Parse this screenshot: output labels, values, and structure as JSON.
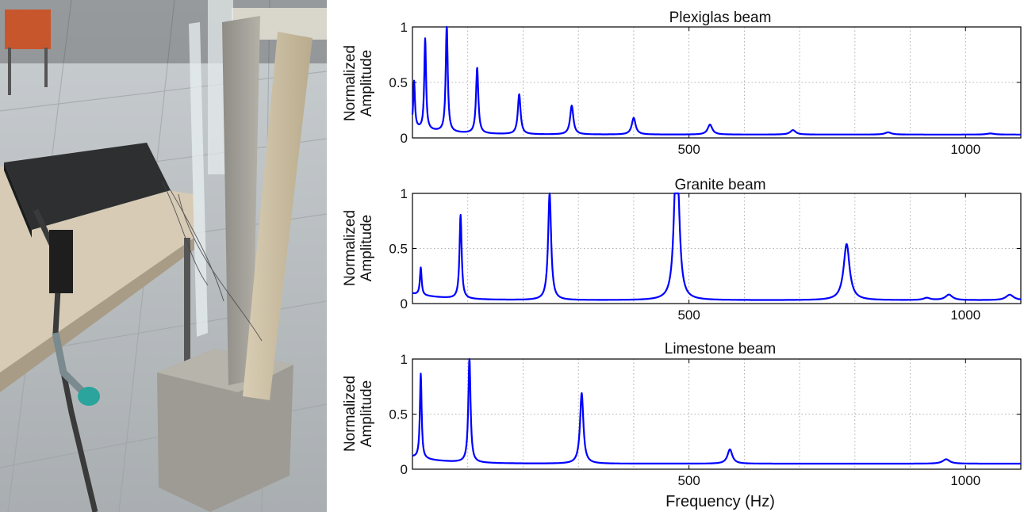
{
  "chart_data": [
    {
      "type": "line",
      "title": "Plexiglas beam",
      "ylabel": [
        "Normalized",
        "Amplitude"
      ],
      "xlabel": "",
      "xlim": [
        0,
        1100
      ],
      "ylim": [
        0,
        1
      ],
      "xticks": [
        "500",
        "1000"
      ],
      "yticks": [
        "0",
        "0.5",
        "1"
      ],
      "grid": true,
      "color": "#0000ff",
      "baseline": 0.03,
      "peaks": [
        {
          "x": 3,
          "y": 0.45
        },
        {
          "x": 23,
          "y": 0.85
        },
        {
          "x": 62,
          "y": 1.0
        },
        {
          "x": 117,
          "y": 0.62
        },
        {
          "x": 193,
          "y": 0.39
        },
        {
          "x": 288,
          "y": 0.29
        },
        {
          "x": 400,
          "y": 0.18
        },
        {
          "x": 538,
          "y": 0.12
        },
        {
          "x": 688,
          "y": 0.07
        },
        {
          "x": 860,
          "y": 0.05
        },
        {
          "x": 1045,
          "y": 0.04
        }
      ]
    },
    {
      "type": "line",
      "title": "Granite beam",
      "ylabel": [
        "Normalized",
        "Amplitude"
      ],
      "xlabel": "",
      "xlim": [
        0,
        1100
      ],
      "ylim": [
        0,
        1
      ],
      "xticks": [
        "500",
        "1000"
      ],
      "yticks": [
        "0",
        "0.5",
        "1"
      ],
      "grid": true,
      "color": "#0000ff",
      "baseline": 0.03,
      "peaks": [
        {
          "x": 15,
          "y": 0.28
        },
        {
          "x": 87,
          "y": 0.79
        },
        {
          "x": 248,
          "y": 1.0
        },
        {
          "x": 476,
          "y": 0.92
        },
        {
          "x": 480,
          "y": 0.66
        },
        {
          "x": 785,
          "y": 0.54
        },
        {
          "x": 930,
          "y": 0.05
        },
        {
          "x": 970,
          "y": 0.08
        },
        {
          "x": 1080,
          "y": 0.08
        }
      ]
    },
    {
      "type": "line",
      "title": "Limestone beam",
      "ylabel": [
        "Normalized",
        "Amplitude"
      ],
      "xlabel": "Frequency (Hz)",
      "xlim": [
        0,
        1100
      ],
      "ylim": [
        0,
        1
      ],
      "xticks": [
        "500",
        "1000"
      ],
      "yticks": [
        "0",
        "0.5",
        "1"
      ],
      "grid": true,
      "color": "#0000ff",
      "baseline": 0.05,
      "peaks": [
        {
          "x": 15,
          "y": 0.82
        },
        {
          "x": 103,
          "y": 1.0
        },
        {
          "x": 306,
          "y": 0.69
        },
        {
          "x": 574,
          "y": 0.18
        },
        {
          "x": 965,
          "y": 0.09
        }
      ]
    }
  ]
}
